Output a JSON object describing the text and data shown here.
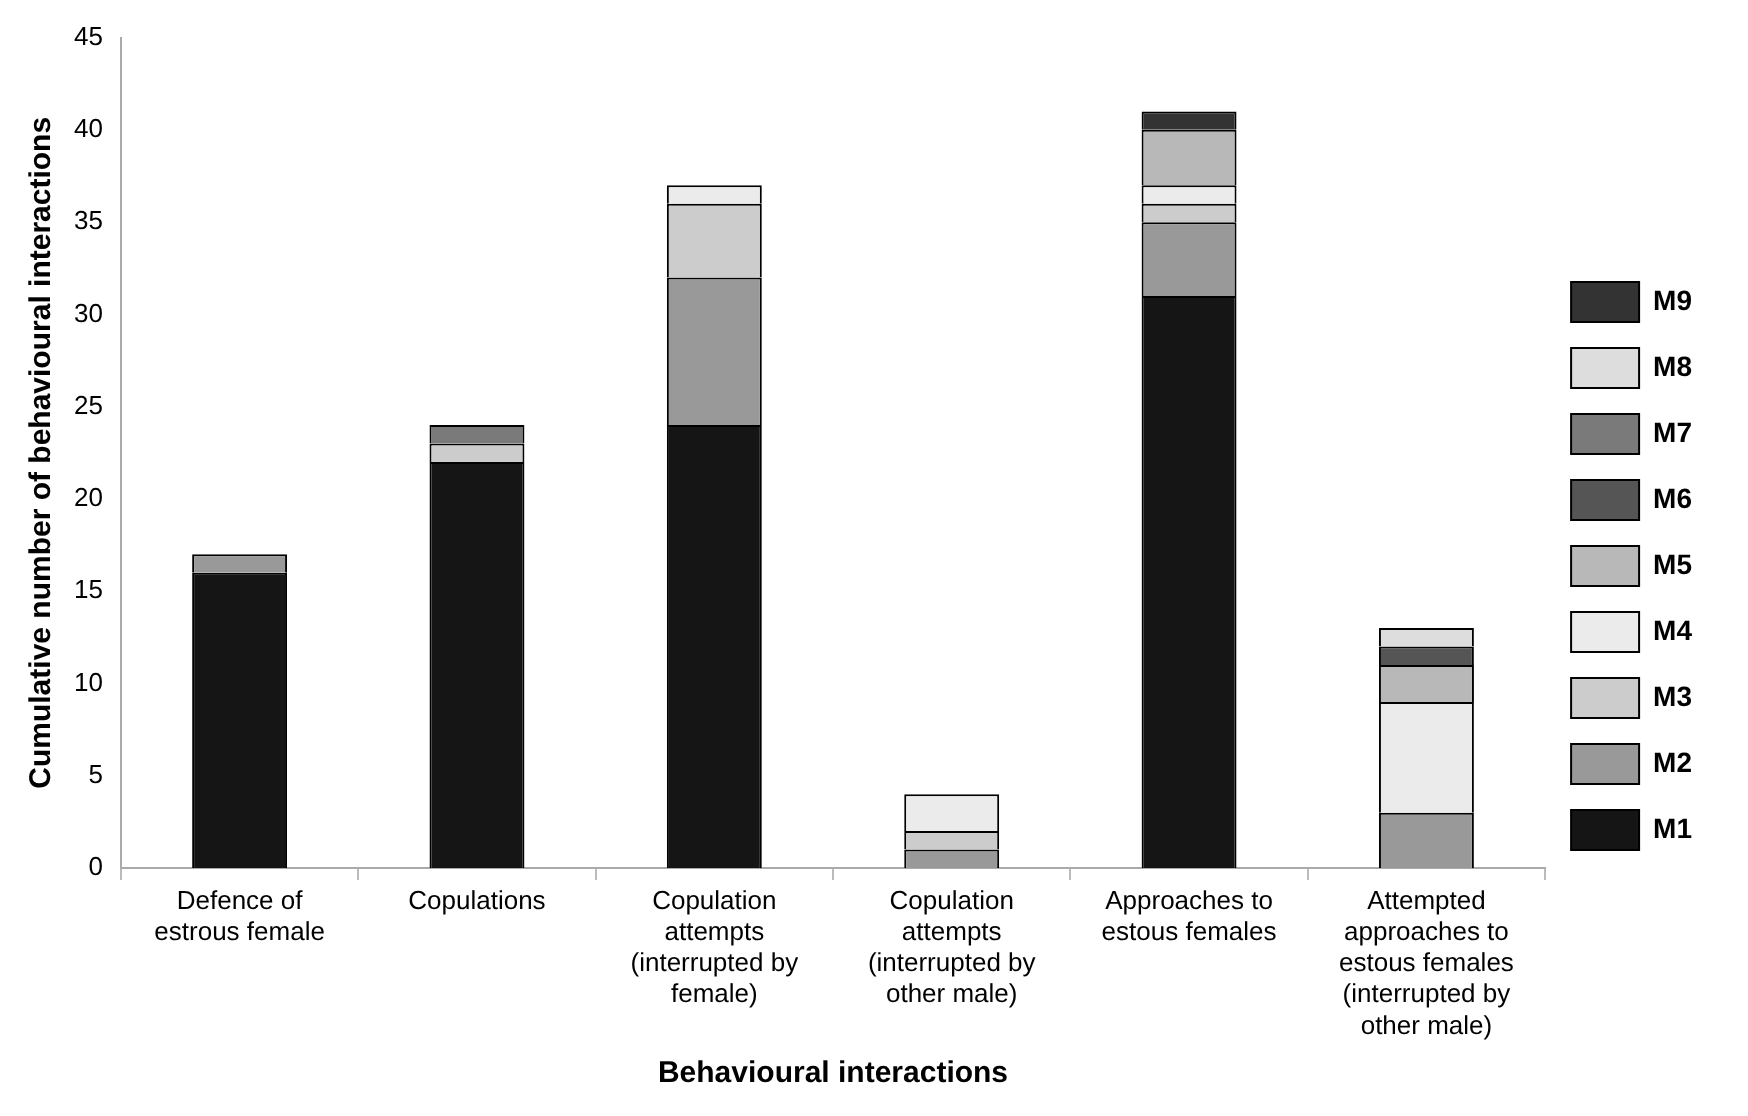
{
  "chart_data": {
    "type": "bar",
    "stacked": true,
    "xlabel": "Behavioural interactions",
    "ylabel": "Cumulative number of behavioural interactions",
    "categories": [
      "Defence of estrous female",
      "Copulations",
      "Copulation attempts (interrupted by female)",
      "Copulation attempts (interrupted by other male)",
      "Approaches to estous females",
      "Attempted approaches to estous females (interrupted by other male)"
    ],
    "series": [
      {
        "name": "M1",
        "color": "#151515",
        "values": [
          16,
          22,
          24,
          0,
          31,
          0
        ]
      },
      {
        "name": "M2",
        "color": "#999999",
        "values": [
          1,
          0,
          8,
          1,
          4,
          3
        ]
      },
      {
        "name": "M3",
        "color": "#cccccc",
        "values": [
          0,
          1,
          4,
          1,
          1,
          0
        ]
      },
      {
        "name": "M4",
        "color": "#ebebeb",
        "values": [
          0,
          0,
          1,
          2,
          1,
          6
        ]
      },
      {
        "name": "M5",
        "color": "#b8b8b8",
        "values": [
          0,
          0,
          0,
          0,
          3,
          2
        ]
      },
      {
        "name": "M6",
        "color": "#555555",
        "values": [
          0,
          0,
          0,
          0,
          0,
          1
        ]
      },
      {
        "name": "M7",
        "color": "#7a7a7a",
        "values": [
          0,
          1,
          0,
          0,
          0,
          0
        ]
      },
      {
        "name": "M8",
        "color": "#dddddd",
        "values": [
          0,
          0,
          0,
          0,
          0,
          1
        ]
      },
      {
        "name": "M9",
        "color": "#333333",
        "values": [
          0,
          0,
          0,
          0,
          1,
          0
        ]
      }
    ],
    "ylim": [
      0,
      45
    ],
    "yticks": [
      0,
      5,
      10,
      15,
      20,
      25,
      30,
      35,
      40,
      45
    ],
    "grid": false,
    "legend": "right"
  }
}
